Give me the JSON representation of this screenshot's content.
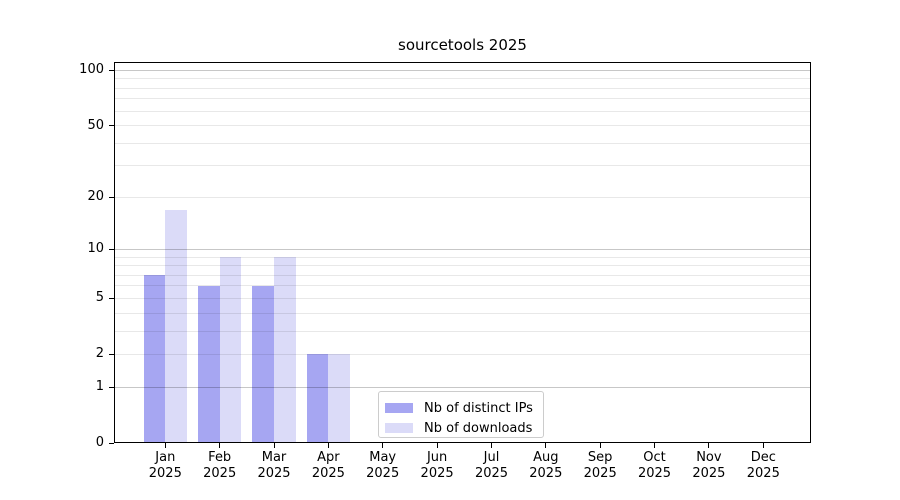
{
  "chart_data": {
    "type": "bar",
    "title": "sourcetools 2025",
    "x_months": [
      "Jan",
      "Feb",
      "Mar",
      "Apr",
      "May",
      "Jun",
      "Jul",
      "Aug",
      "Sep",
      "Oct",
      "Nov",
      "Dec"
    ],
    "x_year": "2025",
    "series": [
      {
        "name": "Nb of distinct IPs",
        "color": "#a6a6f2",
        "values": [
          7,
          6,
          6,
          2,
          0,
          0,
          0,
          0,
          0,
          0,
          0,
          0
        ]
      },
      {
        "name": "Nb of downloads",
        "color": "#dbdbf8",
        "values": [
          17,
          9,
          9,
          2,
          0,
          0,
          0,
          0,
          0,
          0,
          0,
          0
        ]
      }
    ],
    "yscale": "log10(1+x)",
    "ylim": [
      0,
      111
    ],
    "y_ticks": [
      100,
      50,
      20,
      10,
      5,
      2,
      1,
      0
    ],
    "y_gridlines_major": [
      1,
      10,
      100
    ],
    "y_gridlines_minor": [
      2,
      3,
      4,
      5,
      6,
      7,
      8,
      9,
      20,
      30,
      40,
      50,
      60,
      70,
      80,
      90
    ],
    "grid": true,
    "legend_position": "inside-lower-center-left",
    "colors": {
      "grid_major": "rgba(0,0,0,0.22)",
      "grid_minor": "rgba(0,0,0,0.09)",
      "spine": "#000000",
      "background": "#ffffff"
    }
  }
}
